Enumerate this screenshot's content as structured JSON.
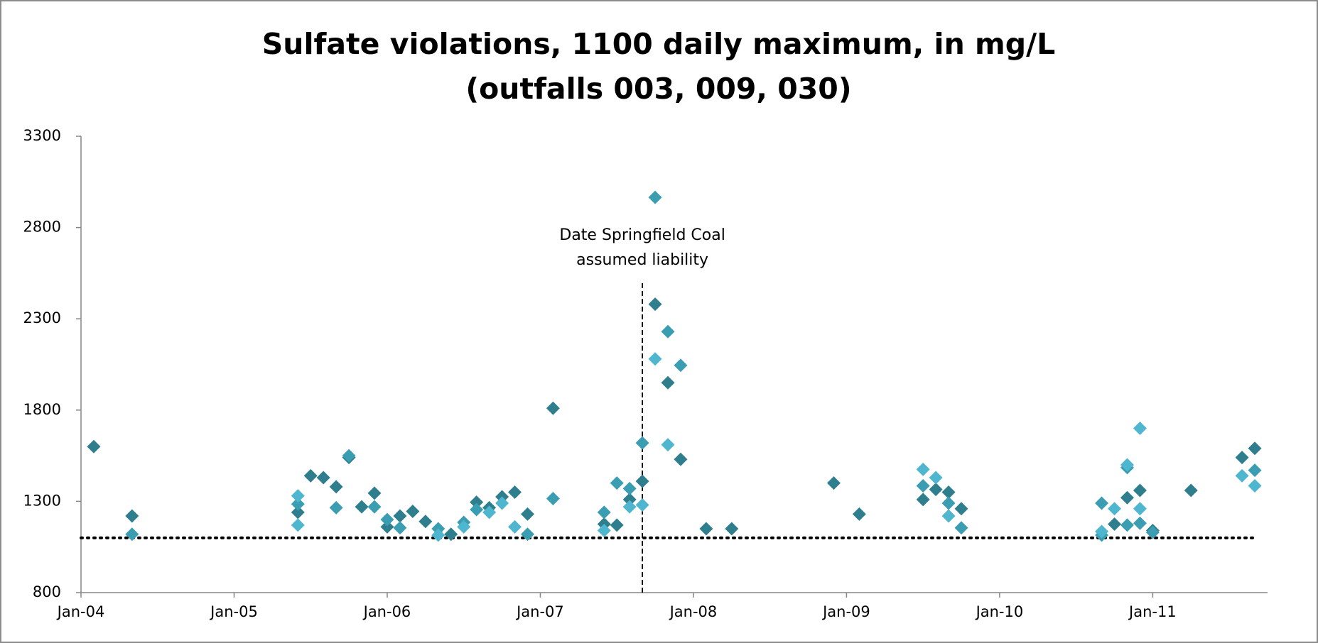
{
  "chart_data": {
    "type": "scatter",
    "title": [
      "Sulfate violations, 1100 daily maximum, in mg/L",
      "(outfalls 003, 009, 030)"
    ],
    "annotation": [
      "Date Springfield Coal",
      "assumed liability"
    ],
    "xlim": [
      "2004-01",
      "2011-10"
    ],
    "xticks": [
      {
        "value": "2004-01",
        "label": "Jan-04"
      },
      {
        "value": "2005-01",
        "label": "Jan-05"
      },
      {
        "value": "2006-01",
        "label": "Jan-06"
      },
      {
        "value": "2007-01",
        "label": "Jan-07"
      },
      {
        "value": "2008-01",
        "label": "Jan-08"
      },
      {
        "value": "2009-01",
        "label": "Jan-09"
      },
      {
        "value": "2010-01",
        "label": "Jan-10"
      },
      {
        "value": "2011-01",
        "label": "Jan-11"
      }
    ],
    "ylim": [
      800,
      3300
    ],
    "yticks": [
      800,
      1300,
      1800,
      2300,
      2800,
      3300
    ],
    "grid": false,
    "reference_lines": [
      {
        "axis": "y",
        "value": 1100,
        "from": "2004-01",
        "to": "2011-09",
        "style": "dotted",
        "color": "#000000"
      },
      {
        "axis": "x",
        "value": "2007-09",
        "from": 800,
        "to": 2500,
        "style": "dashed",
        "color": "#000000"
      }
    ],
    "series": [
      {
        "color": "#2f7e8e",
        "x": [
          "2004-02",
          "2004-05",
          "2005-06",
          "2005-07",
          "2005-08",
          "2005-09",
          "2005-10",
          "2005-11",
          "2005-12",
          "2006-01",
          "2006-02",
          "2006-03",
          "2006-04",
          "2006-06",
          "2006-08",
          "2006-09",
          "2006-10",
          "2006-11",
          "2006-12",
          "2007-02",
          "2007-06",
          "2007-07",
          "2007-08",
          "2007-09",
          "2007-10",
          "2007-11",
          "2007-12",
          "2008-02",
          "2008-04",
          "2008-12",
          "2009-02",
          "2009-07",
          "2009-08",
          "2009-09",
          "2009-10",
          "2010-10",
          "2010-11",
          "2010-12",
          "2011-01",
          "2011-04",
          "2011-08",
          "2011-09"
        ],
        "values": [
          1600,
          1220,
          1240,
          1440,
          1430,
          1380,
          1540,
          1270,
          1345,
          1160,
          1220,
          1245,
          1190,
          1120,
          1295,
          1265,
          1325,
          1350,
          1230,
          1810,
          1175,
          1170,
          1310,
          1410,
          2380,
          1950,
          1530,
          1150,
          1150,
          1400,
          1230,
          1310,
          1365,
          1350,
          1260,
          1175,
          1320,
          1360,
          1140,
          1360,
          1540,
          1590
        ]
      },
      {
        "color": "#3a9db1",
        "x": [
          "2004-05",
          "2005-06",
          "2005-09",
          "2005-10",
          "2005-12",
          "2006-01",
          "2006-02",
          "2006-05",
          "2006-07",
          "2006-08",
          "2006-12",
          "2007-02",
          "2007-06",
          "2007-07",
          "2007-08",
          "2007-09",
          "2007-10",
          "2007-11",
          "2007-12",
          "2009-07",
          "2009-09",
          "2009-10",
          "2010-09",
          "2010-09",
          "2010-11",
          "2010-11",
          "2010-12",
          "2011-01",
          "2011-09"
        ],
        "values": [
          1120,
          1285,
          1265,
          1550,
          1270,
          1200,
          1155,
          1150,
          1185,
          1255,
          1120,
          1315,
          1240,
          1400,
          1370,
          1620,
          2965,
          2230,
          2045,
          1385,
          1290,
          1155,
          1290,
          1115,
          1485,
          1170,
          1180,
          1130,
          1470
        ]
      },
      {
        "color": "#4fb6cf",
        "x": [
          "2005-06",
          "2005-06",
          "2006-05",
          "2006-07",
          "2006-09",
          "2006-10",
          "2006-11",
          "2007-06",
          "2007-08",
          "2007-09",
          "2007-10",
          "2007-11",
          "2009-07",
          "2009-08",
          "2009-09",
          "2010-09",
          "2010-10",
          "2010-11",
          "2010-12",
          "2010-12",
          "2011-08",
          "2011-09"
        ],
        "values": [
          1330,
          1170,
          1115,
          1160,
          1240,
          1290,
          1160,
          1140,
          1270,
          1280,
          2080,
          1610,
          1475,
          1430,
          1220,
          1135,
          1260,
          1500,
          1700,
          1260,
          1440,
          1385
        ]
      }
    ]
  }
}
